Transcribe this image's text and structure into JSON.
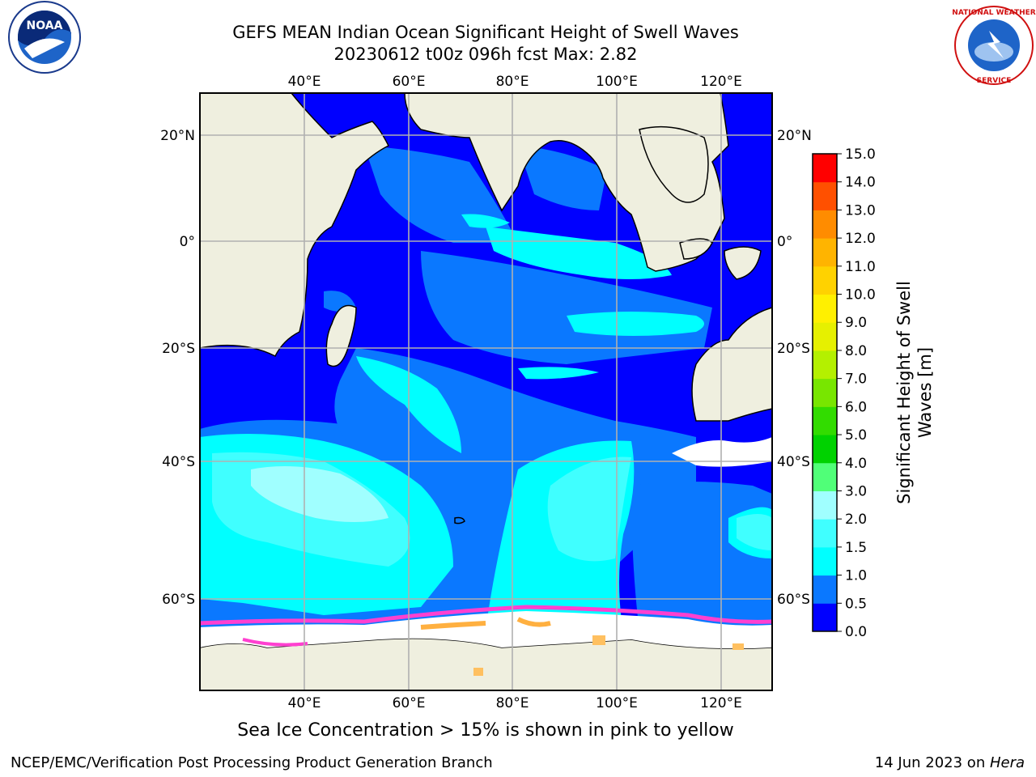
{
  "header": {
    "title_line1": "GEFS MEAN Indian Ocean Significant Height of Swell Waves",
    "title_line2": "20230612 t00z 096h fcst   Max: 2.82"
  },
  "logos": {
    "left": {
      "icon": "noaa-logo",
      "text": "NOAA"
    },
    "right": {
      "icon": "national-weather-service-logo",
      "text": "NATIONAL WEATHER SERVICE"
    }
  },
  "map": {
    "lon_labels": [
      "40°E",
      "60°E",
      "80°E",
      "100°E",
      "120°E"
    ],
    "lat_labels": [
      "20°N",
      "0°",
      "20°S",
      "40°S",
      "60°S"
    ],
    "ocean_color": "#0000ff",
    "land_color": "#efefdf",
    "ice_color": "#ffffff"
  },
  "colorbar": {
    "label_line1": "Significant Height of Swell",
    "label_line2": "Waves [m]",
    "ticks": [
      "0.0",
      "0.5",
      "1.0",
      "1.5",
      "2.0",
      "3.0",
      "4.0",
      "5.0",
      "6.0",
      "7.0",
      "8.0",
      "9.0",
      "10.0",
      "11.0",
      "12.0",
      "13.0",
      "14.0",
      "15.0"
    ],
    "colors": [
      "#0000ff",
      "#0a78ff",
      "#00ffff",
      "#40ffff",
      "#a0ffff",
      "#50ff78",
      "#00d200",
      "#32dc00",
      "#78e600",
      "#b4f000",
      "#e6f000",
      "#fff000",
      "#ffd200",
      "#ffb400",
      "#ff8c00",
      "#ff5000",
      "#ff0000"
    ]
  },
  "footer": {
    "sea_ice_note": "Sea Ice Concentration > 15% is shown in pink to yellow",
    "credit": "NCEP/EMC/Verification Post Processing Product Generation Branch",
    "date_prefix": "14 Jun 2023 on ",
    "machine": "Hera"
  }
}
